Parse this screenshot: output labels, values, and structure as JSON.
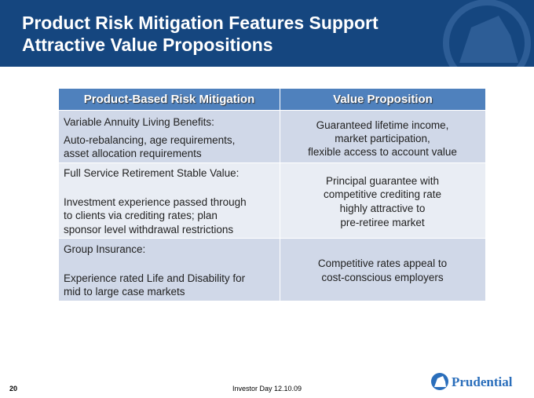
{
  "header": {
    "title_lines": [
      "Product Risk Mitigation Features Support",
      "Attractive Value Propositions"
    ]
  },
  "table": {
    "columns": [
      "Product-Based Risk Mitigation",
      "Value Proposition"
    ],
    "rows": [
      {
        "heading": "Variable Annuity Living Benefits:",
        "detail": [
          "Auto-rebalancing, age requirements,",
          "asset allocation requirements"
        ],
        "value": [
          "Guaranteed lifetime income,",
          "market participation,",
          "flexible access to account value"
        ]
      },
      {
        "heading": "Full Service Retirement Stable Value:",
        "detail": [
          "Investment experience passed through",
          "to clients via crediting rates; plan",
          "sponsor level withdrawal restrictions"
        ],
        "value": [
          "Principal guarantee with",
          "competitive crediting rate",
          "highly attractive to",
          "pre-retiree market"
        ]
      },
      {
        "heading": "Group Insurance:",
        "detail": [
          "Experience rated Life and Disability for",
          "mid to large case markets"
        ],
        "value": [
          "Competitive rates appeal to",
          "cost-conscious employers"
        ]
      }
    ]
  },
  "footer": {
    "page_number": "20",
    "event": "Investor Day 12.10.09",
    "logo": "Prudential"
  }
}
